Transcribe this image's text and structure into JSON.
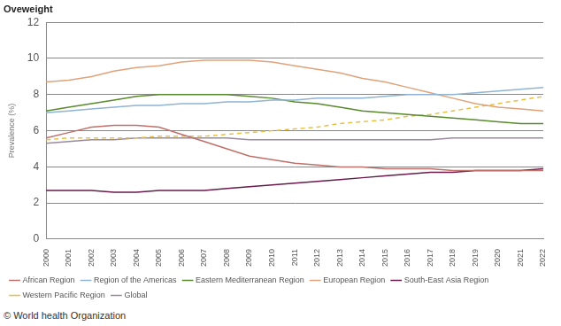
{
  "chart_data": {
    "type": "line",
    "title": "Oveweight",
    "y_label": "Prevalence (%)",
    "source": "© World health Organization",
    "categories": [
      "2000",
      "2001",
      "2002",
      "2003",
      "2004",
      "2005",
      "2006",
      "2007",
      "2008",
      "2009",
      "2010",
      "2011",
      "2012",
      "2013",
      "2014",
      "2015",
      "2016",
      "2017",
      "2018",
      "2019",
      "2020",
      "2021",
      "2022"
    ],
    "ylim": [
      0,
      12
    ],
    "yticks": [
      0,
      2,
      4,
      6,
      8,
      10,
      12
    ],
    "grid": true,
    "legend": "bottom",
    "series": [
      {
        "name": "African Region",
        "color": "#c0706a",
        "line_style": "solid",
        "values": [
          5.6,
          5.9,
          6.2,
          6.3,
          6.3,
          6.2,
          5.8,
          5.4,
          5.0,
          4.6,
          4.4,
          4.2,
          4.1,
          4.0,
          4.0,
          3.9,
          3.9,
          3.9,
          3.8,
          3.8,
          3.8,
          3.8,
          3.8
        ]
      },
      {
        "name": "Region of the Americas",
        "color": "#8fb4d4",
        "line_style": "solid",
        "values": [
          7.0,
          7.1,
          7.2,
          7.3,
          7.4,
          7.4,
          7.5,
          7.5,
          7.6,
          7.6,
          7.7,
          7.7,
          7.8,
          7.8,
          7.8,
          7.9,
          8.0,
          8.0,
          8.0,
          8.1,
          8.2,
          8.3,
          8.4
        ]
      },
      {
        "name": "Eastern Mediterranean Region",
        "color": "#5a8a2e",
        "line_style": "solid",
        "values": [
          7.1,
          7.3,
          7.5,
          7.7,
          7.9,
          8.0,
          8.0,
          8.0,
          8.0,
          7.9,
          7.8,
          7.6,
          7.5,
          7.3,
          7.1,
          7.0,
          6.9,
          6.8,
          6.7,
          6.6,
          6.5,
          6.4,
          6.4
        ]
      },
      {
        "name": "European Region",
        "color": "#e0a27a",
        "line_style": "solid",
        "values": [
          8.7,
          8.8,
          9.0,
          9.3,
          9.5,
          9.6,
          9.8,
          9.9,
          9.9,
          9.9,
          9.8,
          9.6,
          9.4,
          9.2,
          8.9,
          8.7,
          8.4,
          8.1,
          7.8,
          7.5,
          7.3,
          7.2,
          7.1
        ]
      },
      {
        "name": "South-East Asia Region",
        "color": "#6a1a4c",
        "line_style": "solid",
        "values": [
          2.7,
          2.7,
          2.7,
          2.6,
          2.6,
          2.7,
          2.7,
          2.7,
          2.8,
          2.9,
          3.0,
          3.1,
          3.2,
          3.3,
          3.4,
          3.5,
          3.6,
          3.7,
          3.7,
          3.8,
          3.8,
          3.8,
          3.9
        ]
      },
      {
        "name": "Western Pacific Region",
        "color": "#e8c040",
        "line_style": "dashed",
        "values": [
          5.5,
          5.6,
          5.6,
          5.6,
          5.6,
          5.7,
          5.7,
          5.7,
          5.8,
          5.9,
          6.0,
          6.1,
          6.2,
          6.4,
          6.5,
          6.6,
          6.8,
          6.9,
          7.1,
          7.3,
          7.5,
          7.7,
          7.9
        ]
      },
      {
        "name": "Global",
        "color": "#9a8aa0",
        "line_style": "solid",
        "values": [
          5.3,
          5.4,
          5.5,
          5.5,
          5.6,
          5.6,
          5.6,
          5.6,
          5.6,
          5.5,
          5.5,
          5.5,
          5.5,
          5.5,
          5.5,
          5.5,
          5.5,
          5.5,
          5.6,
          5.6,
          5.6,
          5.6,
          5.6
        ]
      }
    ]
  }
}
